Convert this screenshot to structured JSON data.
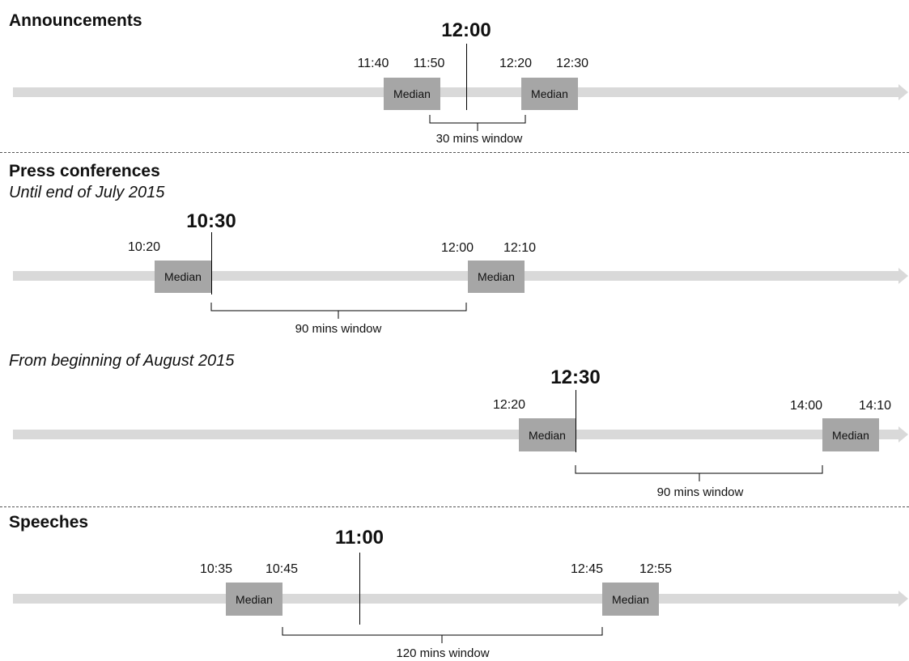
{
  "sections": {
    "announcements": {
      "title": "Announcements",
      "event_time": "12:00",
      "times": [
        "11:40",
        "11:50",
        "12:20",
        "12:30"
      ],
      "median_label": "Median",
      "window_label": "30 mins window"
    },
    "press": {
      "title": "Press conferences",
      "until": {
        "subtitle": "Until end of July 2015",
        "event_time": "10:30",
        "times": [
          "10:20",
          "12:00",
          "12:10"
        ],
        "median_label": "Median",
        "window_label": "90 mins window"
      },
      "from": {
        "subtitle": "From beginning of August 2015",
        "event_time": "12:30",
        "times": [
          "12:20",
          "14:00",
          "14:10"
        ],
        "median_label": "Median",
        "window_label": "90 mins window"
      }
    },
    "speeches": {
      "title": "Speeches",
      "event_time": "11:00",
      "times": [
        "10:35",
        "10:45",
        "12:45",
        "12:55"
      ],
      "median_label": "Median",
      "window_label": "120 mins window"
    }
  },
  "colors": {
    "track": "#d9d9d9",
    "median_box": "#a6a6a6",
    "line": "#000000",
    "divider": "#555555"
  }
}
